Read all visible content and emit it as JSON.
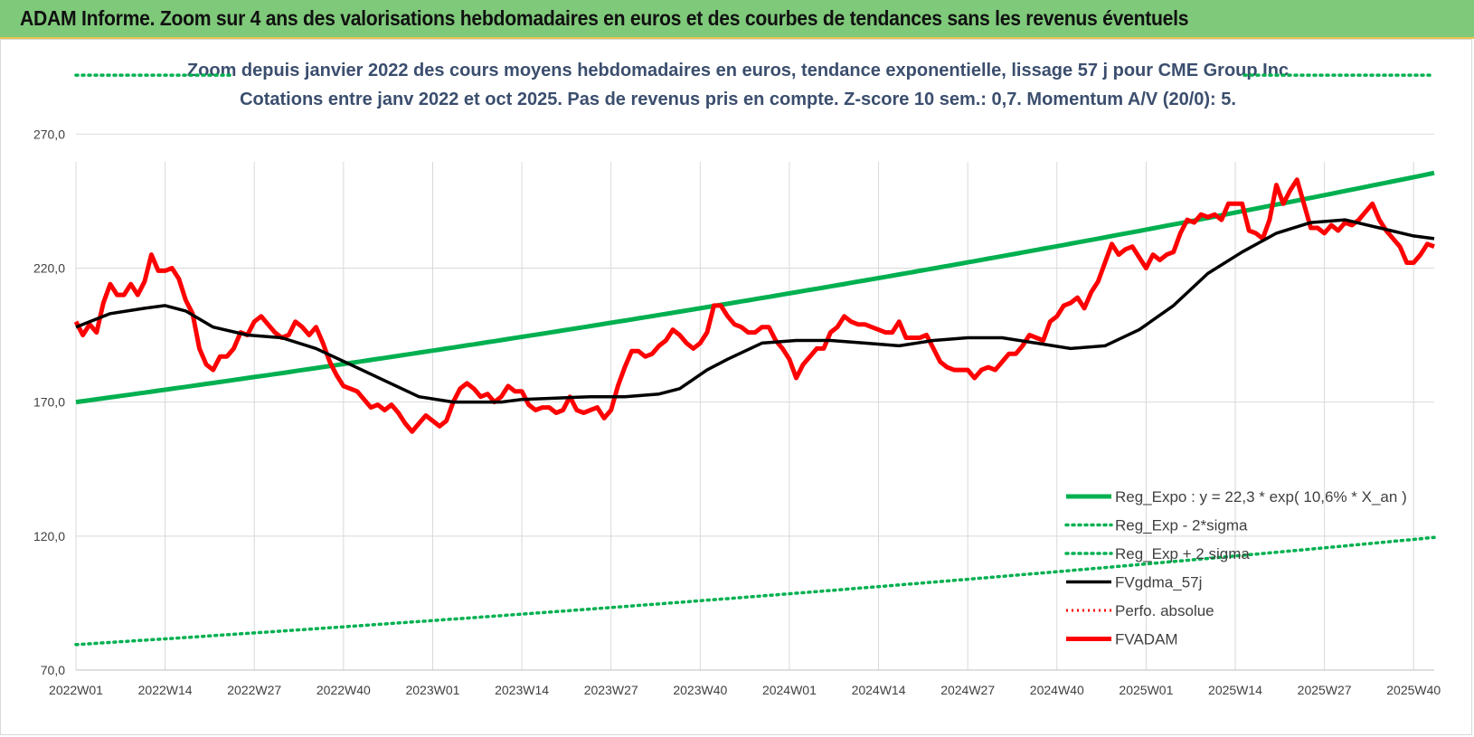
{
  "header": {
    "title": "ADAM Informe. Zoom sur 4 ans des valorisations hebdomadaires en euros et des courbes de tendances sans les revenus éventuels"
  },
  "colors": {
    "banner": "#7fc97a",
    "trend": "#00b050",
    "price": "#ff0000",
    "smooth": "#000000",
    "perf": "#ff0000",
    "grid": "#d9d9d9"
  },
  "chart_data": {
    "type": "line",
    "title_line1": "Zoom depuis janvier 2022 des cours moyens hebdomadaires en euros, tendance exponentielle, lissage 57 j pour CME Group Inc",
    "title_line2": "Cotations entre janv 2022 et oct 2025. Pas de revenus pris en compte. Z-score 10 sem.: 0,7. Momentum A/V (20/0): 5.",
    "xlabel": "",
    "ylabel": "",
    "ylim": [
      70,
      290
    ],
    "yticks": [
      70,
      120,
      170,
      220,
      270
    ],
    "ytick_labels": [
      "70,0",
      "120,0",
      "170,0",
      "220,0",
      "270,0"
    ],
    "x_range": [
      0,
      198
    ],
    "xtick_labels": [
      "2022W01",
      "2022W14",
      "2022W27",
      "2022W40",
      "2023W01",
      "2023W14",
      "2023W27",
      "2023W40",
      "2024W01",
      "2024W14",
      "2024W27",
      "2024W40",
      "2025W01",
      "2025W14",
      "2025W27",
      "2025W40"
    ],
    "xtick_step": 13,
    "legend": [
      {
        "label": "Reg_Expo : y = 22,3 * exp( 10,6% *  X_an )",
        "key": "reg_expo"
      },
      {
        "label": "Reg_Exp - 2*sigma",
        "key": "reg_lower"
      },
      {
        "label": "Reg_Exp + 2 sigma",
        "key": "reg_upper"
      },
      {
        "label": "FVgdma_57j",
        "key": "fvgdma"
      },
      {
        "label": "Perfo. absolue",
        "key": "perf"
      },
      {
        "label": "FVADAM",
        "key": "fvadam"
      }
    ],
    "series": [
      {
        "name": "Reg_Expo",
        "key": "reg_expo",
        "x": [
          0,
          198
        ],
        "values": [
          170.0,
          255.5
        ]
      },
      {
        "name": "Reg_Exp - 2*sigma",
        "key": "reg_lower",
        "x": [
          0,
          198
        ],
        "values": [
          79.5,
          119.5
        ]
      },
      {
        "name": "Reg_Exp + 2 sigma",
        "key": "reg_upper",
        "x": [
          0,
          198
        ],
        "values": [
          292.0,
          292.0
        ]
      },
      {
        "name": "FVgdma_57j",
        "key": "fvgdma",
        "x": [
          0,
          5,
          10,
          13,
          16,
          20,
          25,
          30,
          35,
          40,
          45,
          50,
          55,
          60,
          62,
          65,
          70,
          75,
          80,
          85,
          88,
          92,
          95,
          100,
          105,
          110,
          115,
          120,
          125,
          130,
          135,
          140,
          145,
          150,
          155,
          160,
          165,
          170,
          175,
          180,
          185,
          190,
          195,
          198
        ],
        "values": [
          198,
          203,
          205,
          206,
          204,
          198,
          195,
          194,
          190,
          184,
          178,
          172,
          170,
          170,
          170,
          171,
          171.5,
          172,
          172,
          173,
          175,
          182,
          186,
          192,
          193,
          193,
          192,
          191,
          193,
          194,
          194,
          192,
          190,
          191,
          197,
          206,
          218,
          226,
          233,
          237,
          238,
          235,
          232,
          231
        ]
      },
      {
        "name": "FVADAM",
        "key": "fvadam",
        "x": [
          0,
          1,
          2,
          3,
          4,
          5,
          6,
          7,
          8,
          9,
          10,
          11,
          12,
          13,
          14,
          15,
          16,
          17,
          18,
          19,
          20,
          21,
          22,
          23,
          24,
          25,
          26,
          27,
          28,
          29,
          30,
          31,
          32,
          33,
          34,
          35,
          36,
          37,
          38,
          39,
          40,
          41,
          42,
          43,
          44,
          45,
          46,
          47,
          48,
          49,
          50,
          51,
          52,
          53,
          54,
          55,
          56,
          57,
          58,
          59,
          60,
          61,
          62,
          63,
          64,
          65,
          66,
          67,
          68,
          69,
          70,
          71,
          72,
          73,
          74,
          75,
          76,
          77,
          78,
          79,
          80,
          81,
          82,
          83,
          84,
          85,
          86,
          87,
          88,
          89,
          90,
          91,
          92,
          93,
          94,
          95,
          96,
          97,
          98,
          99,
          100,
          101,
          102,
          103,
          104,
          105,
          106,
          107,
          108,
          109,
          110,
          111,
          112,
          113,
          114,
          115,
          116,
          117,
          118,
          119,
          120,
          121,
          122,
          123,
          124,
          125,
          126,
          127,
          128,
          129,
          130,
          131,
          132,
          133,
          134,
          135,
          136,
          137,
          138,
          139,
          140,
          141,
          142,
          143,
          144,
          145,
          146,
          147,
          148,
          149,
          150,
          151,
          152,
          153,
          154,
          155,
          156,
          157,
          158,
          159,
          160,
          161,
          162,
          163,
          164,
          165,
          166,
          167,
          168,
          169,
          170,
          171,
          172,
          173,
          174,
          175,
          176,
          177,
          178,
          179,
          180,
          181,
          182,
          183,
          184,
          185,
          186,
          187,
          188,
          189,
          190,
          191,
          192,
          193,
          194,
          195,
          196,
          197,
          198
        ],
        "values": [
          200,
          195,
          199,
          196,
          207,
          214,
          210,
          210,
          214,
          210,
          215,
          225,
          219,
          219,
          220,
          216,
          208,
          203,
          190,
          184,
          182,
          187,
          187,
          190,
          196,
          195,
          200,
          202,
          199,
          196,
          194,
          195,
          200,
          198,
          195,
          198,
          192,
          185,
          180,
          176,
          175,
          174,
          171,
          168,
          169,
          167,
          169,
          166,
          162,
          159,
          162,
          165,
          163,
          161,
          163,
          170,
          175,
          177,
          175,
          172,
          173,
          170,
          172,
          176,
          174,
          174,
          169,
          167,
          168,
          168,
          166,
          167,
          172,
          167,
          166,
          167,
          168,
          164,
          167,
          176,
          183,
          189,
          189,
          187,
          188,
          191,
          193,
          197,
          195,
          192,
          190,
          192,
          196,
          206,
          206,
          202,
          199,
          198,
          196,
          196,
          198,
          198,
          193,
          190,
          186,
          179,
          184,
          187,
          190,
          190,
          196,
          198,
          202,
          200,
          199,
          199,
          198,
          197,
          196,
          196,
          200,
          194,
          194,
          194,
          195,
          190,
          185,
          183,
          182,
          182,
          182,
          179,
          182,
          183,
          182,
          185,
          188,
          188,
          191,
          195,
          194,
          193,
          200,
          202,
          206,
          207,
          209,
          205,
          211,
          215,
          222,
          229,
          225,
          227,
          228,
          224,
          220,
          225,
          223,
          225,
          226,
          233,
          238,
          237,
          240,
          239,
          240,
          238,
          244,
          244,
          244,
          234,
          233,
          231,
          238,
          251,
          244,
          249,
          253,
          244,
          235,
          235,
          233,
          236,
          234,
          237,
          236,
          238,
          241,
          244,
          238,
          234,
          231,
          228,
          222,
          222,
          225,
          229,
          228
        ]
      }
    ]
  }
}
